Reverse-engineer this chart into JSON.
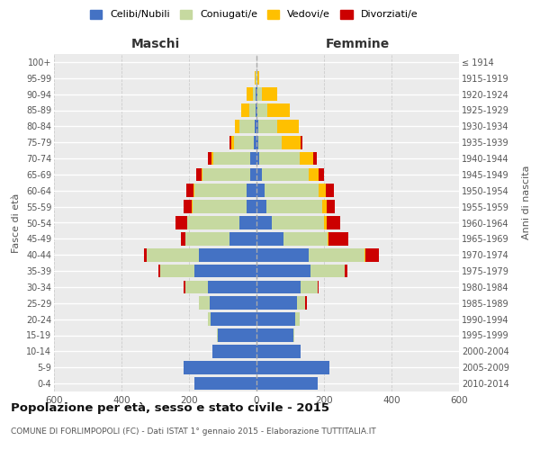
{
  "age_groups": [
    "0-4",
    "5-9",
    "10-14",
    "15-19",
    "20-24",
    "25-29",
    "30-34",
    "35-39",
    "40-44",
    "45-49",
    "50-54",
    "55-59",
    "60-64",
    "65-69",
    "70-74",
    "75-79",
    "80-84",
    "85-89",
    "90-94",
    "95-99",
    "100+"
  ],
  "birth_years": [
    "2010-2014",
    "2005-2009",
    "2000-2004",
    "1995-1999",
    "1990-1994",
    "1985-1989",
    "1980-1984",
    "1975-1979",
    "1970-1974",
    "1965-1969",
    "1960-1964",
    "1955-1959",
    "1950-1954",
    "1945-1949",
    "1940-1944",
    "1935-1939",
    "1930-1934",
    "1925-1929",
    "1920-1924",
    "1915-1919",
    "≤ 1914"
  ],
  "colors": {
    "celibi": "#4472c4",
    "coniugati": "#c6d9a0",
    "vedovi": "#ffc000",
    "divorziati": "#cc0000"
  },
  "males": {
    "celibi": [
      185,
      215,
      130,
      115,
      135,
      140,
      145,
      185,
      170,
      80,
      50,
      30,
      30,
      20,
      18,
      8,
      5,
      3,
      2,
      0,
      0
    ],
    "coniugati": [
      0,
      0,
      0,
      2,
      10,
      30,
      65,
      100,
      155,
      130,
      155,
      160,
      155,
      140,
      110,
      60,
      45,
      18,
      8,
      2,
      0
    ],
    "vedovi": [
      0,
      0,
      0,
      0,
      0,
      0,
      0,
      0,
      0,
      0,
      1,
      2,
      3,
      4,
      5,
      8,
      15,
      25,
      20,
      3,
      0
    ],
    "divorziati": [
      0,
      0,
      0,
      0,
      0,
      2,
      5,
      5,
      8,
      15,
      35,
      25,
      20,
      15,
      10,
      5,
      0,
      0,
      0,
      0,
      0
    ]
  },
  "females": {
    "celibi": [
      180,
      215,
      130,
      110,
      115,
      120,
      130,
      160,
      155,
      80,
      45,
      30,
      25,
      15,
      8,
      5,
      5,
      3,
      2,
      0,
      0
    ],
    "coniugati": [
      0,
      0,
      0,
      2,
      12,
      25,
      50,
      100,
      165,
      130,
      155,
      165,
      160,
      140,
      120,
      70,
      55,
      30,
      15,
      2,
      0
    ],
    "vedovi": [
      0,
      0,
      0,
      0,
      0,
      0,
      0,
      0,
      2,
      3,
      8,
      12,
      20,
      30,
      40,
      55,
      65,
      65,
      45,
      5,
      0
    ],
    "divorziati": [
      0,
      0,
      0,
      0,
      0,
      3,
      5,
      10,
      40,
      60,
      40,
      25,
      25,
      15,
      10,
      5,
      0,
      0,
      0,
      0,
      0
    ]
  },
  "title": "Popolazione per età, sesso e stato civile - 2015",
  "subtitle": "COMUNE DI FORLIMPOPOLI (FC) - Dati ISTAT 1° gennaio 2015 - Elaborazione TUTTITALIA.IT",
  "xlabel_left": "Maschi",
  "xlabel_right": "Femmine",
  "ylabel_left": "Fasce di età",
  "ylabel_right": "Anni di nascita",
  "xlim": 600,
  "legend_labels": [
    "Celibi/Nubili",
    "Coniugati/e",
    "Vedovi/e",
    "Divorziati/e"
  ],
  "bg_color": "#ffffff",
  "plot_bg_color": "#ebebeb",
  "grid_color": "#ffffff"
}
